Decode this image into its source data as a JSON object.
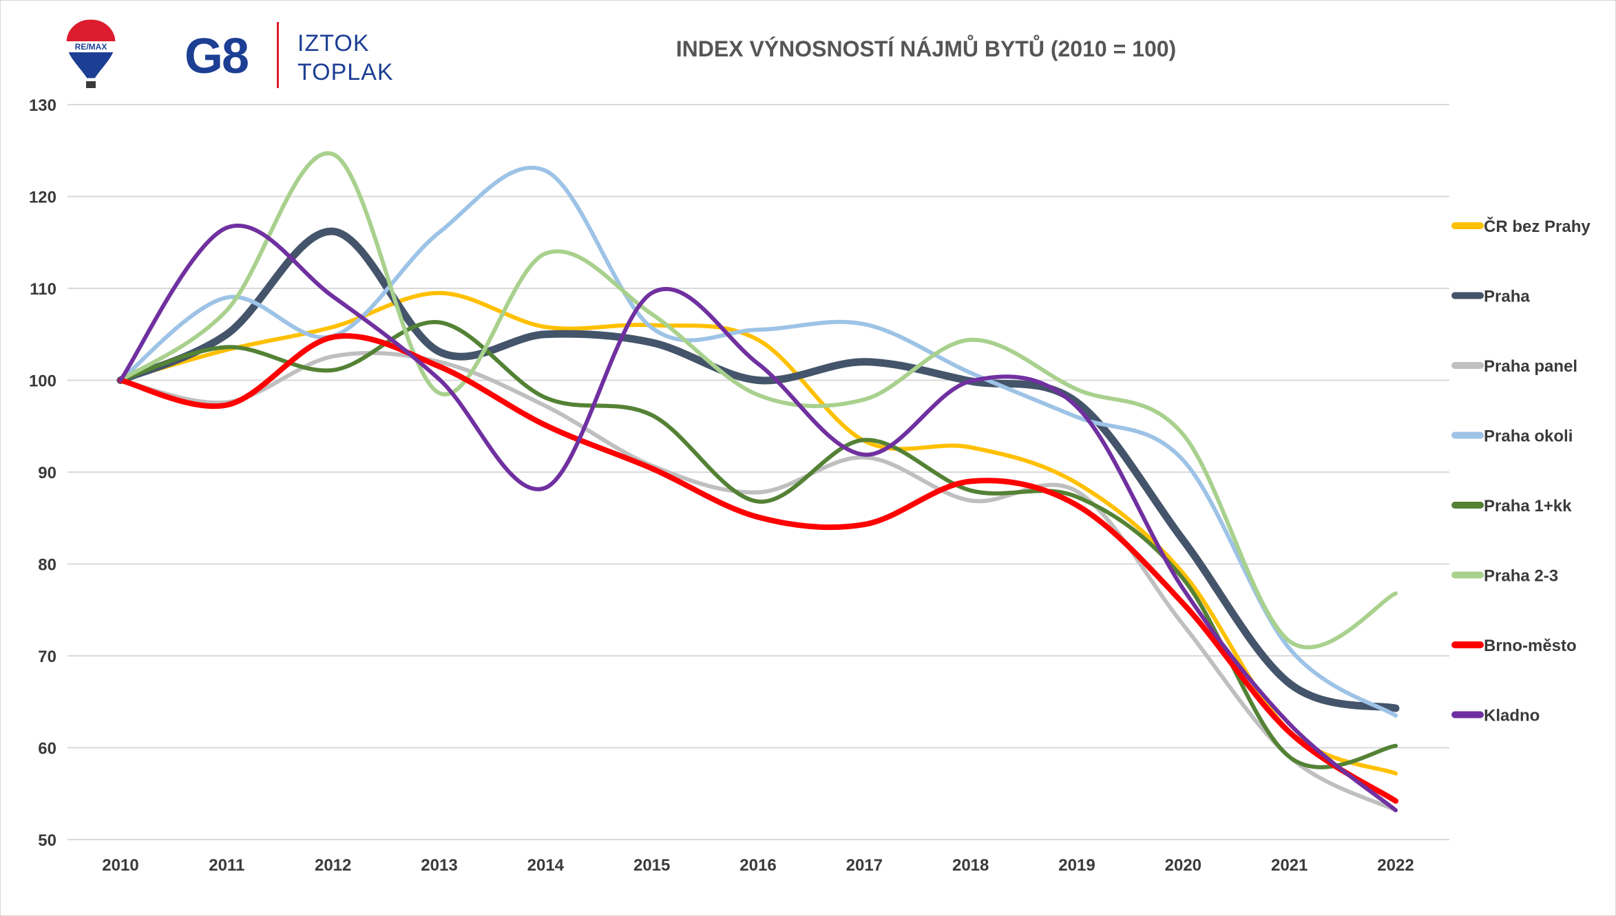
{
  "logo": {
    "badge_text": "RE/MAX",
    "brand_text": "G8",
    "name_line1": "IZTOK",
    "name_line2": "TOPLAK",
    "colors": {
      "blue": "#1c3f94",
      "red": "#dc1c2e"
    }
  },
  "chart_data": {
    "type": "line",
    "title": "INDEX VÝNOSNOSTÍ NÁJMŮ BYTŮ (2010 = 100)",
    "xlabel": "",
    "ylabel": "",
    "categories": [
      "2010",
      "2011",
      "2012",
      "2013",
      "2014",
      "2015",
      "2016",
      "2017",
      "2018",
      "2019",
      "2020",
      "2021",
      "2022"
    ],
    "ylim": [
      50,
      130
    ],
    "yticks": [
      50,
      60,
      70,
      80,
      90,
      100,
      110,
      120,
      130
    ],
    "grid": "horizontal",
    "legend": "right",
    "series": [
      {
        "name": "ČR bez Prahy",
        "color": "#ffc000",
        "values": [
          100,
          103.3,
          105.8,
          109.5,
          105.8,
          106.0,
          104.4,
          93.4,
          92.7,
          88.8,
          79.0,
          61.8,
          57.2
        ]
      },
      {
        "name": "Praha",
        "color": "#44546a",
        "values": [
          100,
          105.0,
          116.2,
          103.1,
          105.0,
          104.1,
          100.0,
          102.0,
          99.9,
          97.6,
          82.6,
          67.0,
          64.3
        ]
      },
      {
        "name": "Praha panel",
        "color": "#bfbfbf",
        "values": [
          100,
          97.6,
          102.6,
          102.0,
          97.2,
          90.7,
          87.8,
          91.6,
          86.9,
          87.9,
          73.4,
          59.0,
          53.2
        ]
      },
      {
        "name": "Praha okoli",
        "color": "#9dc3e6",
        "values": [
          100,
          109.0,
          104.8,
          116.1,
          122.8,
          105.7,
          105.5,
          106.1,
          100.8,
          96.0,
          91.3,
          70.8,
          63.5
        ]
      },
      {
        "name": "Praha 1+kk",
        "color": "#548235",
        "values": [
          100,
          103.6,
          101.1,
          106.3,
          98.1,
          96.2,
          86.8,
          93.5,
          88.0,
          87.3,
          78.4,
          59.0,
          60.2
        ]
      },
      {
        "name": "Praha 2-3",
        "color": "#a9d18e",
        "values": [
          100,
          107.6,
          124.6,
          98.6,
          113.8,
          107.2,
          98.4,
          97.9,
          104.4,
          99.0,
          94.1,
          71.6,
          76.8
        ]
      },
      {
        "name": "Brno-město",
        "color": "#ff0000",
        "values": [
          100,
          97.3,
          104.7,
          101.5,
          95.1,
          90.4,
          85.1,
          84.3,
          89.0,
          86.4,
          75.7,
          61.7,
          54.2
        ]
      },
      {
        "name": "Kladno",
        "color": "#7030a0",
        "values": [
          100,
          116.6,
          109.1,
          100.1,
          88.3,
          109.5,
          101.8,
          91.9,
          99.9,
          97.1,
          77.3,
          62.6,
          53.2
        ]
      }
    ]
  }
}
